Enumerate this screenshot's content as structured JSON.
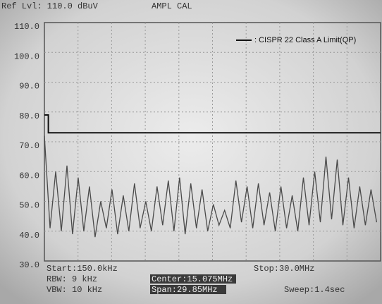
{
  "chart_data": {
    "type": "line",
    "annotations": [
      "Ref Lvl: 110.0 dBuV",
      "AMPL  CAL",
      "Start:150.0kHz",
      "RBW: 9 kHz",
      "VBW: 10 kHz",
      "Center:15.075MHz",
      "Span:29.85MHz",
      "Stop:30.0MHz",
      "Sweep:1.4sec"
    ],
    "xlim": [
      0.15,
      30
    ],
    "ylim": [
      30,
      110
    ],
    "yticks": [
      {
        "value": 110,
        "label": "110.0"
      },
      {
        "value": 100,
        "label": "100.0"
      },
      {
        "value": 90,
        "label": "90.0"
      },
      {
        "value": 80,
        "label": "80.0"
      },
      {
        "value": 70,
        "label": "70.0"
      },
      {
        "value": 60,
        "label": "60.0"
      },
      {
        "value": 50,
        "label": "50.0"
      },
      {
        "value": 40,
        "label": "40.0"
      },
      {
        "value": 30,
        "label": "30.0"
      }
    ],
    "grid": true,
    "legend": "upper right",
    "series": [
      {
        "name": ": CISPR 22 Class A Limit(QP)",
        "color": "#111111",
        "x": [
          0.15,
          0.5,
          0.5,
          30
        ],
        "values": [
          79,
          79,
          73,
          73
        ]
      },
      {
        "color": "#4a4a4a",
        "x": [
          0.15,
          0.65,
          1.15,
          1.65,
          2.15,
          2.65,
          3.15,
          3.65,
          4.15,
          4.65,
          5.15,
          5.65,
          6.15,
          6.65,
          7.15,
          7.65,
          8.15,
          8.65,
          9.15,
          9.65,
          10.15,
          10.65,
          11.15,
          11.65,
          12.15,
          12.65,
          13.15,
          13.65,
          14.15,
          14.65,
          15.15,
          15.65,
          16.15,
          16.65,
          17.15,
          17.65,
          18.15,
          18.65,
          19.15,
          19.65,
          20.15,
          20.65,
          21.15,
          21.65,
          22.15,
          22.65,
          23.15,
          23.65,
          24.15,
          24.65,
          25.15,
          25.65,
          26.15,
          26.65,
          27.15,
          27.65,
          28.15,
          28.65,
          29.15,
          29.65
        ],
        "values": [
          72,
          41,
          60,
          40,
          62,
          39,
          58,
          40,
          55,
          38,
          50,
          41,
          54,
          39,
          52,
          40,
          56,
          41,
          50,
          40,
          55,
          42,
          57,
          40,
          58,
          39,
          56,
          41,
          54,
          40,
          49,
          42,
          47,
          41,
          57,
          43,
          55,
          41,
          56,
          42,
          53,
          40,
          55,
          41,
          52,
          40,
          58,
          42,
          60,
          43,
          65,
          44,
          64,
          42,
          58,
          41,
          55,
          42,
          54,
          43
        ]
      }
    ]
  }
}
